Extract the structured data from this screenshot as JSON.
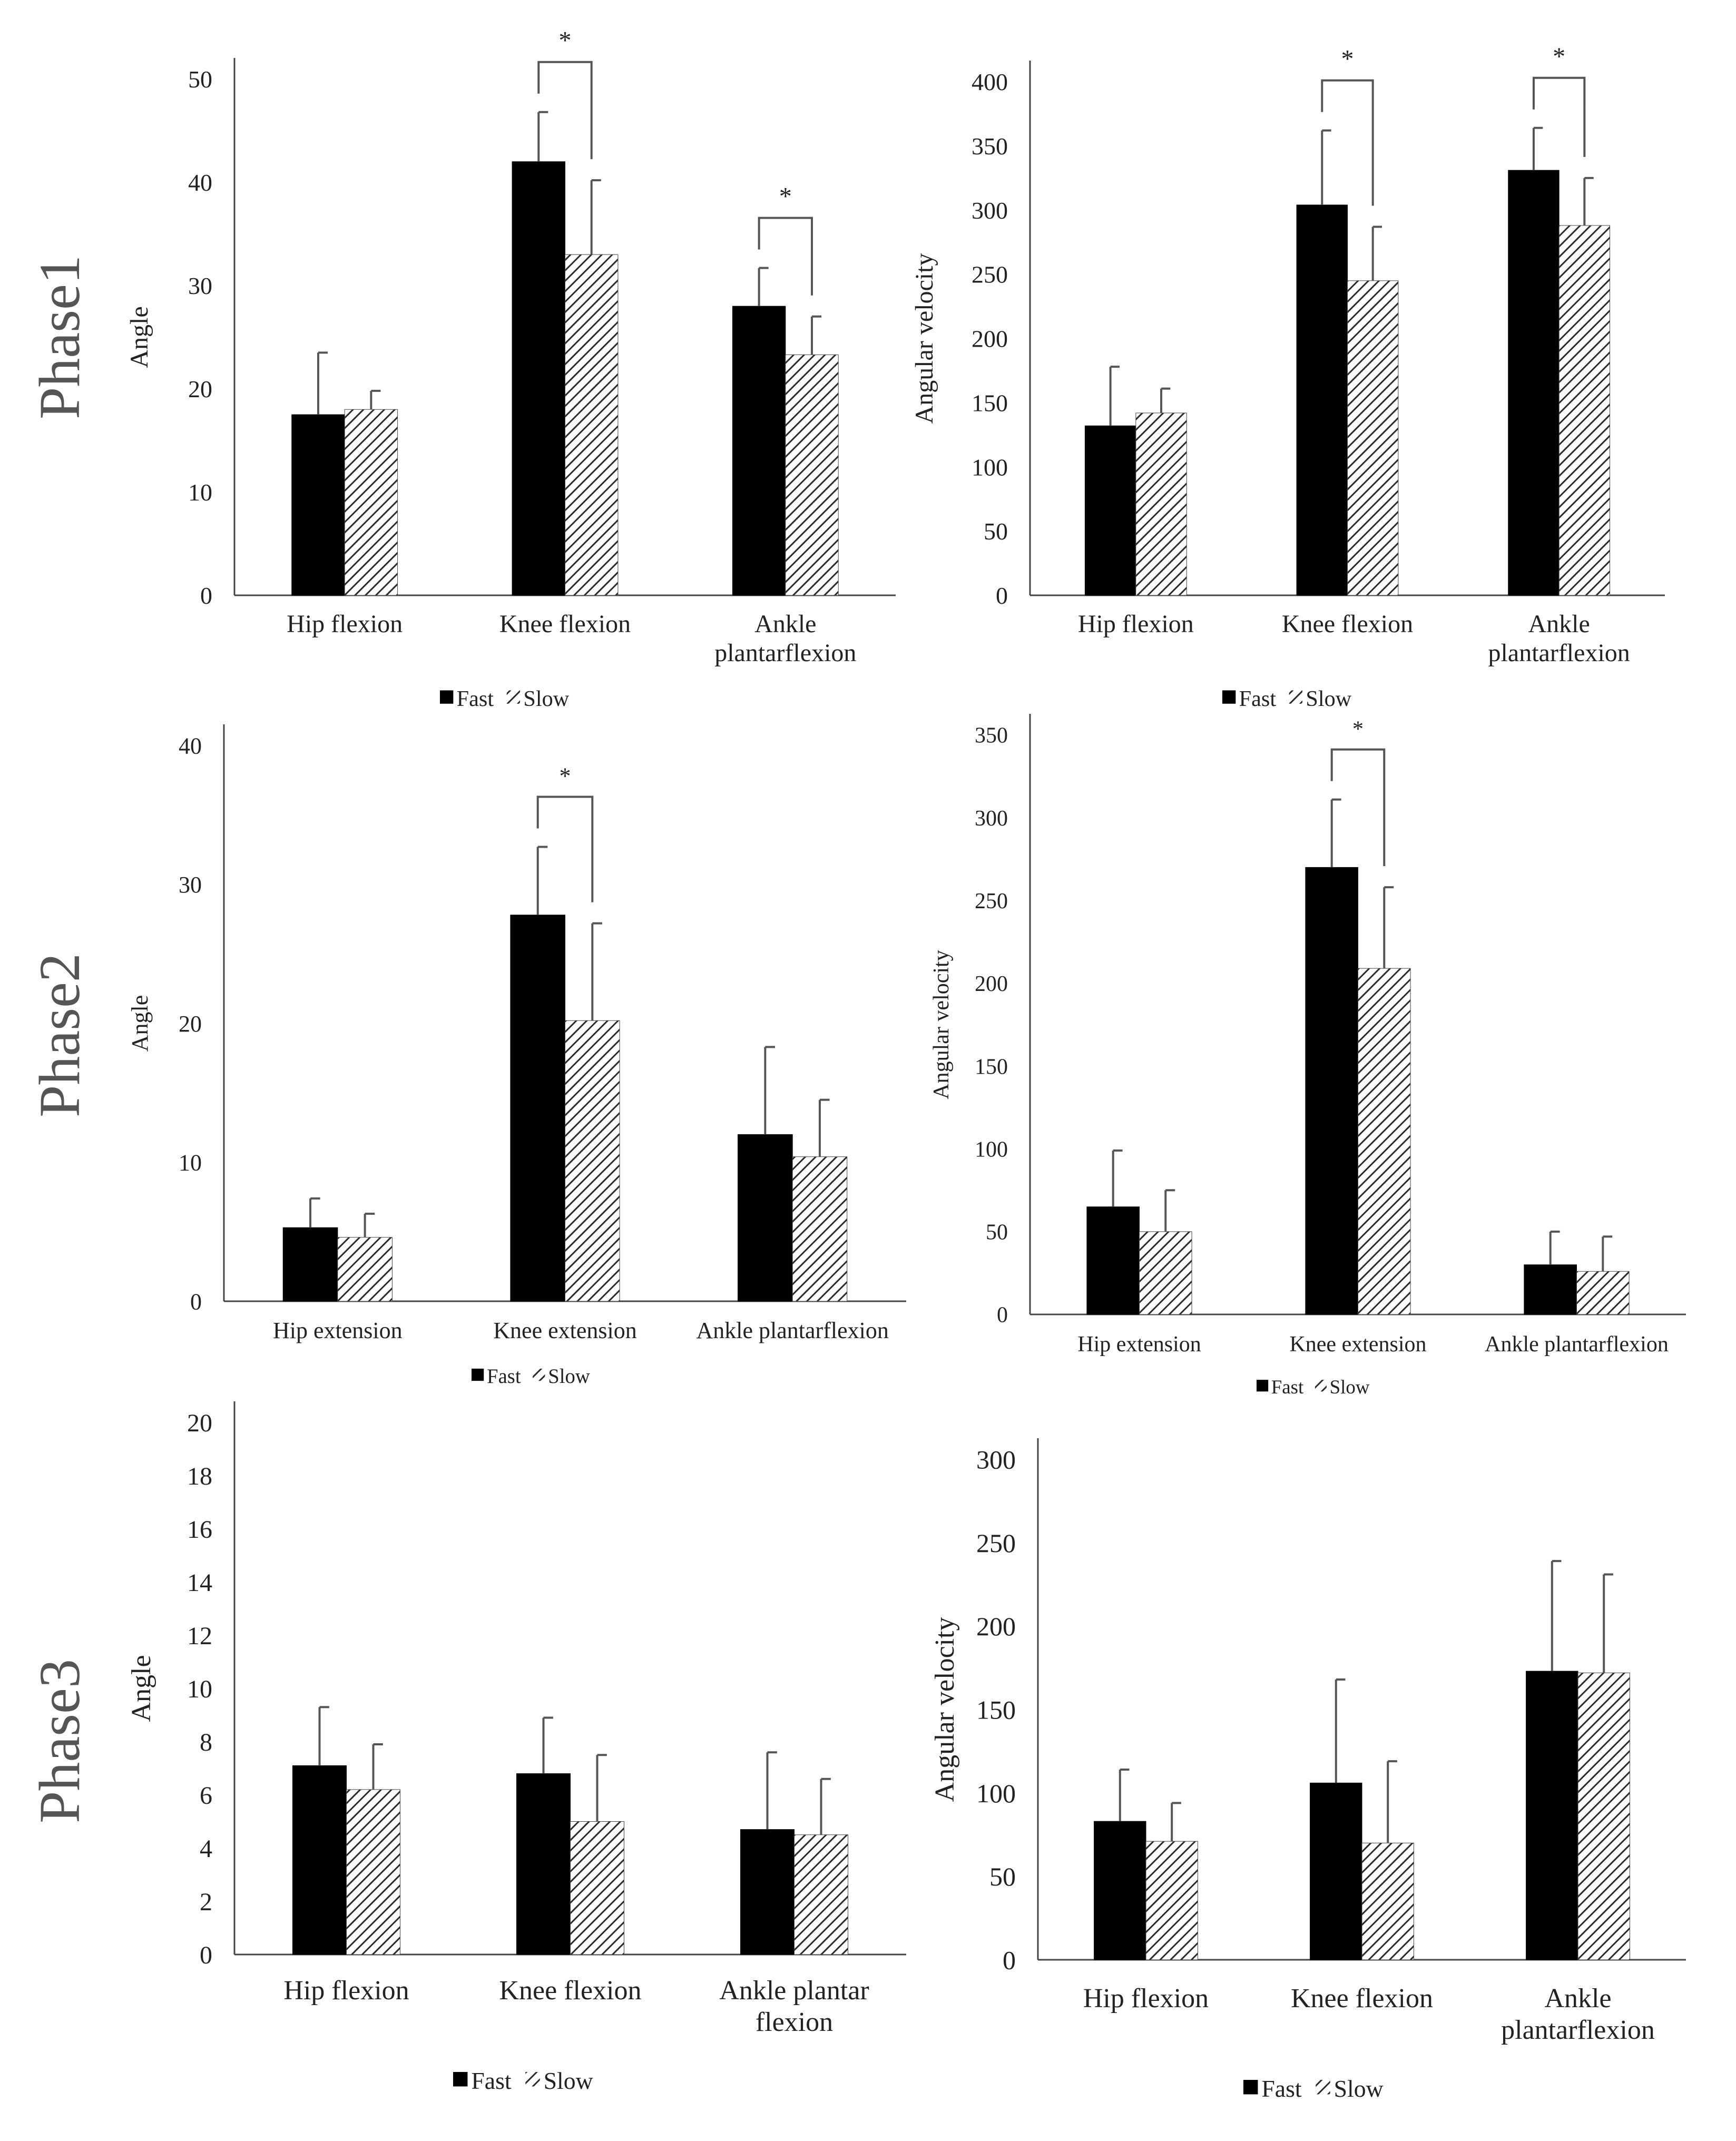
{
  "phase_labels": [
    "Phase1",
    "Phase2",
    "Phase3"
  ],
  "colors": {
    "fast": "#000000",
    "slow_hatch": "#2b2b2b",
    "axis": "#444444",
    "error": "#555555",
    "text": "#222222"
  },
  "chart_data": [
    {
      "id": "p1-angle",
      "type": "bar",
      "phase": "Phase1",
      "ylabel": "Angle",
      "ylim": [
        0,
        50
      ],
      "yticks": [
        0,
        10,
        20,
        30,
        40,
        50
      ],
      "categories": [
        [
          "Hip flexion"
        ],
        [
          "Knee flexion"
        ],
        [
          "Ankle",
          "plantarflexion"
        ]
      ],
      "series": [
        {
          "name": "Fast",
          "values": [
            17.5,
            42,
            28
          ],
          "errors": [
            6,
            4.8,
            3.7
          ]
        },
        {
          "name": "Slow",
          "values": [
            18,
            33,
            23.3
          ],
          "errors": [
            1.8,
            7.2,
            3.7
          ]
        }
      ],
      "significance": [
        {
          "category": 1,
          "label": "*"
        },
        {
          "category": 2,
          "label": "*"
        }
      ],
      "legend": [
        "Fast",
        "Slow"
      ]
    },
    {
      "id": "p1-velocity",
      "type": "bar",
      "phase": "Phase1",
      "ylabel": "Angular velocity",
      "ylim": [
        0,
        400
      ],
      "yticks": [
        0,
        50,
        100,
        150,
        200,
        250,
        300,
        350,
        400
      ],
      "categories": [
        [
          "Hip flexion"
        ],
        [
          "Knee flexion"
        ],
        [
          "Ankle",
          "plantarflexion"
        ]
      ],
      "series": [
        {
          "name": "Fast",
          "values": [
            132,
            304,
            331
          ],
          "errors": [
            46,
            58,
            33
          ]
        },
        {
          "name": "Slow",
          "values": [
            142,
            245,
            288
          ],
          "errors": [
            19,
            42,
            37
          ]
        }
      ],
      "significance": [
        {
          "category": 1,
          "label": "*"
        },
        {
          "category": 2,
          "label": "*"
        }
      ],
      "legend": [
        "Fast",
        "Slow"
      ]
    },
    {
      "id": "p2-angle",
      "type": "bar",
      "phase": "Phase2",
      "ylabel": "Angle",
      "ylim": [
        0,
        40
      ],
      "yticks": [
        0,
        10,
        20,
        30,
        40
      ],
      "categories": [
        [
          "Hip extension"
        ],
        [
          "Knee extension"
        ],
        [
          "Ankle plantarflexion"
        ]
      ],
      "series": [
        {
          "name": "Fast",
          "values": [
            5.3,
            27.8,
            12
          ],
          "errors": [
            2.1,
            4.9,
            6.3
          ]
        },
        {
          "name": "Slow",
          "values": [
            4.6,
            20.2,
            10.4
          ],
          "errors": [
            1.7,
            7,
            4.1
          ]
        }
      ],
      "significance": [
        {
          "category": 1,
          "label": "*"
        }
      ],
      "legend": [
        "Fast",
        "Slow"
      ]
    },
    {
      "id": "p2-velocity",
      "type": "bar",
      "phase": "Phase2",
      "ylabel": "Angular velocity",
      "ylim": [
        0,
        350
      ],
      "yticks": [
        0,
        50,
        100,
        150,
        200,
        250,
        300,
        350
      ],
      "categories": [
        [
          "Hip extension"
        ],
        [
          "Knee extension"
        ],
        [
          "Ankle plantarflexion"
        ]
      ],
      "series": [
        {
          "name": "Fast",
          "values": [
            65,
            270,
            30
          ],
          "errors": [
            34,
            41,
            20
          ]
        },
        {
          "name": "Slow",
          "values": [
            50,
            209,
            26
          ],
          "errors": [
            25,
            49,
            21
          ]
        }
      ],
      "significance": [
        {
          "category": 1,
          "label": "*"
        }
      ],
      "legend": [
        "Fast",
        "Slow"
      ]
    },
    {
      "id": "p3-angle",
      "type": "bar",
      "phase": "Phase3",
      "ylabel": "Angle",
      "ylim": [
        0,
        20
      ],
      "yticks": [
        0,
        2,
        4,
        6,
        8,
        10,
        12,
        14,
        16,
        18,
        20
      ],
      "categories": [
        [
          "Hip flexion"
        ],
        [
          "Knee flexion"
        ],
        [
          "Ankle plantar",
          "flexion"
        ]
      ],
      "series": [
        {
          "name": "Fast",
          "values": [
            7.1,
            6.8,
            4.7
          ],
          "errors": [
            2.2,
            2.1,
            2.9
          ]
        },
        {
          "name": "Slow",
          "values": [
            6.2,
            5,
            4.5
          ],
          "errors": [
            1.7,
            2.5,
            2.1
          ]
        }
      ],
      "significance": [],
      "legend": [
        "Fast",
        "Slow"
      ]
    },
    {
      "id": "p3-velocity",
      "type": "bar",
      "phase": "Phase3",
      "ylabel": "Angular velocity",
      "ylim": [
        0,
        300
      ],
      "yticks": [
        0,
        50,
        100,
        150,
        200,
        250,
        300
      ],
      "categories": [
        [
          "Hip flexion"
        ],
        [
          "Knee flexion"
        ],
        [
          "Ankle",
          "plantarflexion"
        ]
      ],
      "series": [
        {
          "name": "Fast",
          "values": [
            83,
            106,
            173
          ],
          "errors": [
            31,
            62,
            66
          ]
        },
        {
          "name": "Slow",
          "values": [
            71,
            70,
            172
          ],
          "errors": [
            23,
            49,
            59
          ]
        }
      ],
      "significance": [],
      "legend": [
        "Fast",
        "Slow"
      ]
    }
  ]
}
